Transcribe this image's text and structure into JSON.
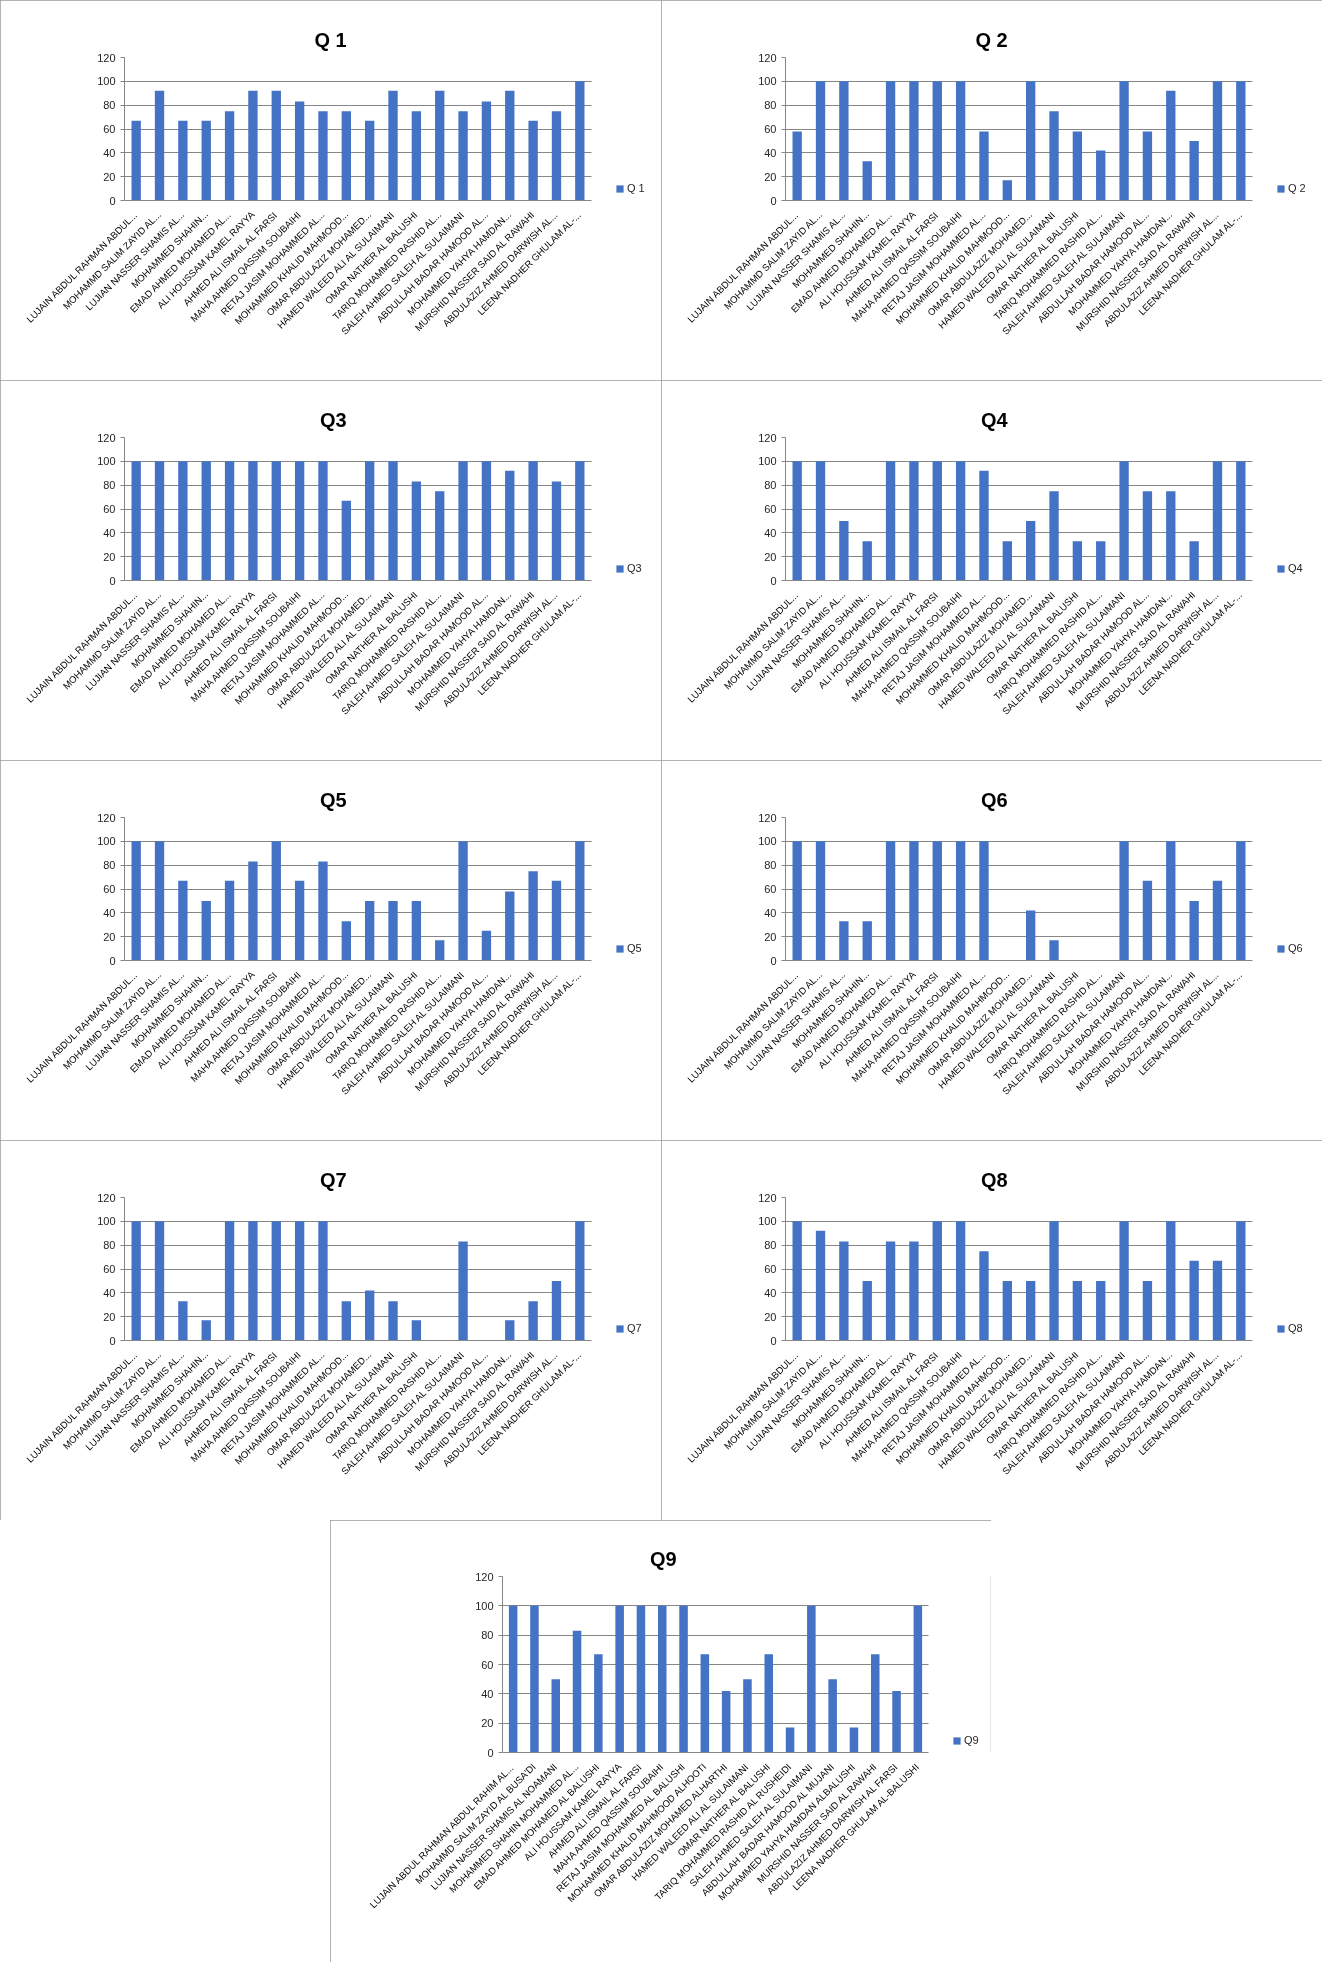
{
  "chart_data": [
    {
      "type": "bar",
      "title": "Q 1",
      "categories": [
        "LUJAIN ABDUL RAHMAN ABDUL...",
        "MOHAMMD SALIM ZAYID AL...",
        "LUJIAN NASSER SHAMIS AL...",
        "MOHAMMED SHAHIN...",
        "EMAD AHMED MOHAMED AL...",
        "ALI HOUSSAM KAMEL RAYYA",
        "AHMED ALI ISMAIL AL FARSI",
        "MAHA AHMED QASSIM SOUBAIHI",
        "RETAJ JASIM MOHAMMED AL...",
        "MOHAMMED KHALID MAHMOOD...",
        "OMAR ABDULAZIZ MOHAMED...",
        "HAMED WALEED ALI AL SULAIMANI",
        "OMAR NATHER AL BALUSHI",
        "TARIQ MOHAMMED RASHID AL...",
        "SALEH AHMED SALEH AL SULAIMANI",
        "ABDULLAH BADAR HAMOOD AL...",
        "MOHAMMED YAHYA HAMDAN...",
        "MURSHID NASSER SAID AL RAWAHI",
        "ABDULAZIZ AHMED DARWISH AL...",
        "LEENA NADHER GHULAM AL-..."
      ],
      "series": [
        {
          "name": "Q 1",
          "color": "#4472c4",
          "values": [
            67,
            92,
            67,
            67,
            75,
            92,
            92,
            83,
            75,
            75,
            67,
            92,
            75,
            92,
            75,
            83,
            92,
            67,
            75,
            100
          ]
        }
      ],
      "ylim": [
        0,
        120
      ],
      "yticks": [
        0,
        20,
        40,
        60,
        80,
        100,
        120
      ],
      "grid": "y",
      "legend": "right"
    },
    {
      "type": "bar",
      "title": "Q 2",
      "categories": [
        "LUJAIN ABDUL RAHMAN ABDUL...",
        "MOHAMMD SALIM ZAYID AL...",
        "LUJIAN NASSER SHAMIS AL...",
        "MOHAMMED SHAHIN...",
        "EMAD AHMED MOHAMED AL...",
        "ALI HOUSSAM KAMEL RAYYA",
        "AHMED ALI ISMAIL AL FARSI",
        "MAHA AHMED QASSIM SOUBAIHI",
        "RETAJ JASIM MOHAMMED AL...",
        "MOHAMMED KHALID MAHMOOD...",
        "OMAR ABDULAZIZ MOHAMED...",
        "HAMED WALEED ALI AL SULAIMANI",
        "OMAR NATHER AL BALUSHI",
        "TARIQ MOHAMMED RASHID AL...",
        "SALEH AHMED SALEH AL SULAIMANI",
        "ABDULLAH BADAR HAMOOD AL...",
        "MOHAMMED YAHYA HAMDAN...",
        "MURSHID NASSER SAID AL RAWAHI",
        "ABDULAZIZ AHMED DARWISH AL...",
        "LEENA NADHER GHULAM AL-..."
      ],
      "series": [
        {
          "name": "Q 2",
          "color": "#4472c4",
          "values": [
            58,
            100,
            100,
            33,
            100,
            100,
            100,
            100,
            58,
            17,
            100,
            75,
            58,
            42,
            100,
            58,
            92,
            50,
            100,
            100
          ]
        }
      ],
      "ylim": [
        0,
        120
      ],
      "yticks": [
        0,
        20,
        40,
        60,
        80,
        100,
        120
      ],
      "grid": "y",
      "legend": "right"
    },
    {
      "type": "bar",
      "title": "Q3",
      "categories": [
        "LUJAIN ABDUL RAHMAN ABDUL...",
        "MOHAMMD SALIM ZAYID AL...",
        "LUJIAN NASSER SHAMIS AL...",
        "MOHAMMED SHAHIN...",
        "EMAD AHMED MOHAMED AL...",
        "ALI HOUSSAM KAMEL RAYYA",
        "AHMED ALI ISMAIL AL FARSI",
        "MAHA AHMED QASSIM SOUBAIHI",
        "RETAJ JASIM MOHAMMED AL...",
        "MOHAMMED KHALID MAHMOOD...",
        "OMAR ABDULAZIZ MOHAMED...",
        "HAMED WALEED ALI AL SULAIMANI",
        "OMAR NATHER AL BALUSHI",
        "TARIQ MOHAMMED RASHID AL...",
        "SALEH AHMED SALEH AL SULAIMANI",
        "ABDULLAH BADAR HAMOOD AL...",
        "MOHAMMED YAHYA HAMDAN...",
        "MURSHID NASSER SAID AL RAWAHI",
        "ABDULAZIZ AHMED DARWISH AL...",
        "LEENA NADHER GHULAM AL-..."
      ],
      "series": [
        {
          "name": "Q3",
          "color": "#4472c4",
          "values": [
            100,
            100,
            100,
            100,
            100,
            100,
            100,
            100,
            100,
            67,
            100,
            100,
            83,
            75,
            100,
            100,
            92,
            100,
            83,
            100
          ]
        }
      ],
      "ylim": [
        0,
        120
      ],
      "yticks": [
        0,
        20,
        40,
        60,
        80,
        100,
        120
      ],
      "grid": "y",
      "legend": "right"
    },
    {
      "type": "bar",
      "title": "Q4",
      "categories": [
        "LUJAIN ABDUL RAHMAN ABDUL...",
        "MOHAMMD SALIM ZAYID AL...",
        "LUJIAN NASSER SHAMIS AL...",
        "MOHAMMED SHAHIN...",
        "EMAD AHMED MOHAMED AL...",
        "ALI HOUSSAM KAMEL RAYYA",
        "AHMED ALI ISMAIL AL FARSI",
        "MAHA AHMED QASSIM SOUBAIHI",
        "RETAJ JASIM MOHAMMED AL...",
        "MOHAMMED KHALID MAHMOOD...",
        "OMAR ABDULAZIZ MOHAMED...",
        "HAMED WALEED ALI AL SULAIMANI",
        "OMAR NATHER AL BALUSHI",
        "TARIQ MOHAMMED RASHID AL...",
        "SALEH AHMED SALEH AL SULAIMANI",
        "ABDULLAH BADAR HAMOOD AL...",
        "MOHAMMED YAHYA HAMDAN...",
        "MURSHID NASSER SAID AL RAWAHI",
        "ABDULAZIZ AHMED DARWISH AL...",
        "LEENA NADHER GHULAM AL-..."
      ],
      "series": [
        {
          "name": "Q4",
          "color": "#4472c4",
          "values": [
            100,
            100,
            50,
            33,
            100,
            100,
            100,
            100,
            92,
            33,
            50,
            75,
            33,
            33,
            100,
            75,
            75,
            33,
            100,
            100
          ]
        }
      ],
      "ylim": [
        0,
        120
      ],
      "yticks": [
        0,
        20,
        40,
        60,
        80,
        100,
        120
      ],
      "grid": "y",
      "legend": "right"
    },
    {
      "type": "bar",
      "title": "Q5",
      "categories": [
        "LUJAIN ABDUL RAHMAN ABDUL...",
        "MOHAMMD SALIM ZAYID AL...",
        "LUJIAN NASSER SHAMIS AL...",
        "MOHAMMED SHAHIN...",
        "EMAD AHMED MOHAMED AL...",
        "ALI HOUSSAM KAMEL RAYYA",
        "AHMED ALI ISMAIL AL FARSI",
        "MAHA AHMED QASSIM SOUBAIHI",
        "RETAJ JASIM MOHAMMED AL...",
        "MOHAMMED KHALID MAHMOOD...",
        "OMAR ABDULAZIZ MOHAMED...",
        "HAMED WALEED ALI AL SULAIMANI",
        "OMAR NATHER AL BALUSHI",
        "TARIQ MOHAMMED RASHID AL...",
        "SALEH AHMED SALEH AL SULAIMANI",
        "ABDULLAH BADAR HAMOOD AL...",
        "MOHAMMED YAHYA HAMDAN...",
        "MURSHID NASSER SAID AL RAWAHI",
        "ABDULAZIZ AHMED DARWISH AL...",
        "LEENA NADHER GHULAM AL-..."
      ],
      "series": [
        {
          "name": "Q5",
          "color": "#4472c4",
          "values": [
            100,
            100,
            67,
            50,
            67,
            83,
            100,
            67,
            83,
            33,
            50,
            50,
            50,
            17,
            100,
            25,
            58,
            75,
            67,
            100
          ]
        }
      ],
      "ylim": [
        0,
        120
      ],
      "yticks": [
        0,
        20,
        40,
        60,
        80,
        100,
        120
      ],
      "grid": "y",
      "legend": "right"
    },
    {
      "type": "bar",
      "title": "Q6",
      "categories": [
        "LUJAIN ABDUL RAHMAN ABDUL...",
        "MOHAMMD SALIM ZAYID AL...",
        "LUJIAN NASSER SHAMIS AL...",
        "MOHAMMED SHAHIN...",
        "EMAD AHMED MOHAMED AL...",
        "ALI HOUSSAM KAMEL RAYYA",
        "AHMED ALI ISMAIL AL FARSI",
        "MAHA AHMED QASSIM SOUBAIHI",
        "RETAJ JASIM MOHAMMED AL...",
        "MOHAMMED KHALID MAHMOOD...",
        "OMAR ABDULAZIZ MOHAMED...",
        "HAMED WALEED ALI AL SULAIMANI",
        "OMAR NATHER AL BALUSHI",
        "TARIQ MOHAMMED RASHID AL...",
        "SALEH AHMED SALEH AL SULAIMANI",
        "ABDULLAH BADAR HAMOOD AL...",
        "MOHAMMED YAHYA HAMDAN...",
        "MURSHID NASSER SAID AL RAWAHI",
        "ABDULAZIZ AHMED DARWISH AL...",
        "LEENA NADHER GHULAM AL-..."
      ],
      "series": [
        {
          "name": "Q6",
          "color": "#4472c4",
          "values": [
            100,
            100,
            33,
            33,
            100,
            100,
            100,
            100,
            100,
            0,
            42,
            17,
            0,
            0,
            100,
            67,
            100,
            50,
            67,
            100
          ]
        }
      ],
      "ylim": [
        0,
        120
      ],
      "yticks": [
        0,
        20,
        40,
        60,
        80,
        100,
        120
      ],
      "grid": "y",
      "legend": "right"
    },
    {
      "type": "bar",
      "title": "Q7",
      "categories": [
        "LUJAIN ABDUL RAHMAN ABDUL...",
        "MOHAMMD SALIM ZAYID AL...",
        "LUJIAN NASSER SHAMIS AL...",
        "MOHAMMED SHAHIN...",
        "EMAD AHMED MOHAMED AL...",
        "ALI HOUSSAM KAMEL RAYYA",
        "AHMED ALI ISMAIL AL FARSI",
        "MAHA AHMED QASSIM SOUBAIHI",
        "RETAJ JASIM MOHAMMED AL...",
        "MOHAMMED KHALID MAHMOOD...",
        "OMAR ABDULAZIZ MOHAMED...",
        "HAMED WALEED ALI AL SULAIMANI",
        "OMAR NATHER AL BALUSHI",
        "TARIQ MOHAMMED RASHID AL...",
        "SALEH AHMED SALEH AL SULAIMANI",
        "ABDULLAH BADAR HAMOOD AL...",
        "MOHAMMED YAHYA HAMDAN...",
        "MURSHID NASSER SAID AL RAWAHI",
        "ABDULAZIZ AHMED DARWISH AL...",
        "LEENA NADHER GHULAM AL-..."
      ],
      "series": [
        {
          "name": "Q7",
          "color": "#4472c4",
          "values": [
            100,
            100,
            33,
            17,
            100,
            100,
            100,
            100,
            100,
            33,
            42,
            33,
            17,
            0,
            83,
            0,
            17,
            33,
            50,
            100
          ]
        }
      ],
      "ylim": [
        0,
        120
      ],
      "yticks": [
        0,
        20,
        40,
        60,
        80,
        100,
        120
      ],
      "grid": "y",
      "legend": "right"
    },
    {
      "type": "bar",
      "title": "Q8",
      "categories": [
        "LUJAIN ABDUL RAHMAN ABDUL...",
        "MOHAMMD SALIM ZAYID AL...",
        "LUJIAN NASSER SHAMIS AL...",
        "MOHAMMED SHAHIN...",
        "EMAD AHMED MOHAMED AL...",
        "ALI HOUSSAM KAMEL RAYYA",
        "AHMED ALI ISMAIL AL FARSI",
        "MAHA AHMED QASSIM SOUBAIHI",
        "RETAJ JASIM MOHAMMED AL...",
        "MOHAMMED KHALID MAHMOOD...",
        "OMAR ABDULAZIZ MOHAMED...",
        "HAMED WALEED ALI AL SULAIMANI",
        "OMAR NATHER AL BALUSHI",
        "TARIQ MOHAMMED RASHID AL...",
        "SALEH AHMED SALEH AL SULAIMANI",
        "ABDULLAH BADAR HAMOOD AL...",
        "MOHAMMED YAHYA HAMDAN...",
        "MURSHID NASSER SAID AL RAWAHI",
        "ABDULAZIZ AHMED DARWISH AL...",
        "LEENA NADHER GHULAM AL-..."
      ],
      "series": [
        {
          "name": "Q8",
          "color": "#4472c4",
          "values": [
            100,
            92,
            83,
            50,
            83,
            83,
            100,
            100,
            75,
            50,
            50,
            100,
            50,
            50,
            100,
            50,
            100,
            67,
            67,
            100
          ]
        }
      ],
      "ylim": [
        0,
        120
      ],
      "yticks": [
        0,
        20,
        40,
        60,
        80,
        100,
        120
      ],
      "grid": "y",
      "legend": "right"
    },
    {
      "type": "bar",
      "title": "Q9",
      "categories": [
        "LUJAIN ABDUL RAHMAN ABDUL RAHIM AL...",
        "MOHAMMD SALIM ZAYID AL BUSA'DI",
        "LUJIAN NASSER SHAMIS AL NOAMANI",
        "MOHAMMED SHAHIN MOHAMMED AL...",
        "EMAD AHMED MOHAMED AL BALUSHI",
        "ALI HOUSSAM KAMEL RAYYA",
        "AHMED ALI ISMAIL AL FARSI",
        "MAHA AHMED QASSIM SOUBAIHI",
        "RETAJ JASIM MOHAMMED AL BALUSHI",
        "MOHAMMED KHALID MAHMOOD ALHOOTI",
        "OMAR ABDULAZIZ MOHAMED ALHARTHI",
        "HAMED WALEED ALI AL SULAIMANI",
        "OMAR NATHER AL BALUSHI",
        "TARIQ MOHAMMED RASHID AL RUSHEIDI",
        "SALEH AHMED SALEH AL SULAIMANI",
        "ABDULLAH BADAR HAMOOD AL MUJANI",
        "MOHAMMED YAHYA HAMDAN ALBALUSHI",
        "MURSHID NASSER SAID AL RAWAHI",
        "ABDULAZIZ AHMED DARWISH AL FARSI",
        "LEENA NADHER GHULAM AL-BALUSHI"
      ],
      "series": [
        {
          "name": "Q9",
          "color": "#4472c4",
          "values": [
            100,
            100,
            50,
            83,
            67,
            100,
            100,
            100,
            100,
            67,
            42,
            50,
            67,
            17,
            100,
            50,
            17,
            67,
            42,
            100
          ]
        }
      ],
      "ylim": [
        0,
        120
      ],
      "yticks": [
        0,
        20,
        40,
        60,
        80,
        100,
        120
      ],
      "grid": "y",
      "legend": "right"
    }
  ]
}
